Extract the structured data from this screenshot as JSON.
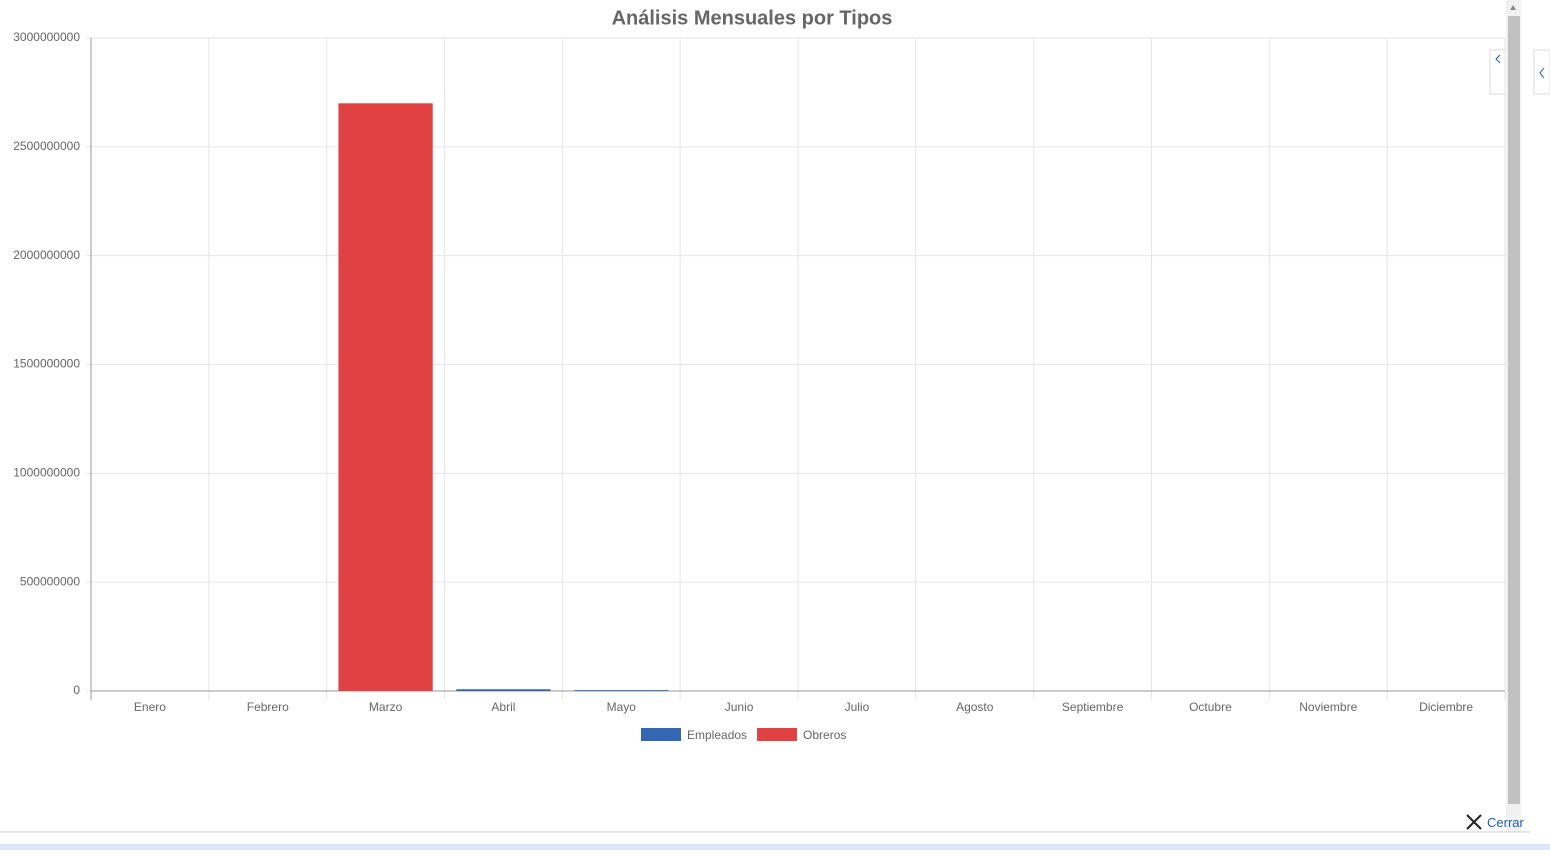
{
  "chart_data": {
    "type": "stacked-bar",
    "title": "Análisis Mensuales por Tipos",
    "categories": [
      "Enero",
      "Febrero",
      "Marzo",
      "Abril",
      "Mayo",
      "Junio",
      "Julio",
      "Agosto",
      "Septiembre",
      "Octubre",
      "Noviembre",
      "Diciembre"
    ],
    "series": [
      {
        "name": "Empleados",
        "color": "#3366b3",
        "values": [
          0,
          0,
          0,
          8000000,
          4000000,
          0,
          0,
          0,
          0,
          0,
          0,
          0
        ]
      },
      {
        "name": "Obreros",
        "color": "#e04143",
        "values": [
          0,
          0,
          2700000000,
          0,
          0,
          0,
          0,
          0,
          0,
          0,
          0,
          0
        ]
      }
    ],
    "ylim": [
      0,
      3000000000
    ],
    "yticks": [
      0,
      500000000,
      1000000000,
      1500000000,
      2000000000,
      2500000000,
      3000000000
    ],
    "grid": true
  },
  "close_label": "Cerrar"
}
